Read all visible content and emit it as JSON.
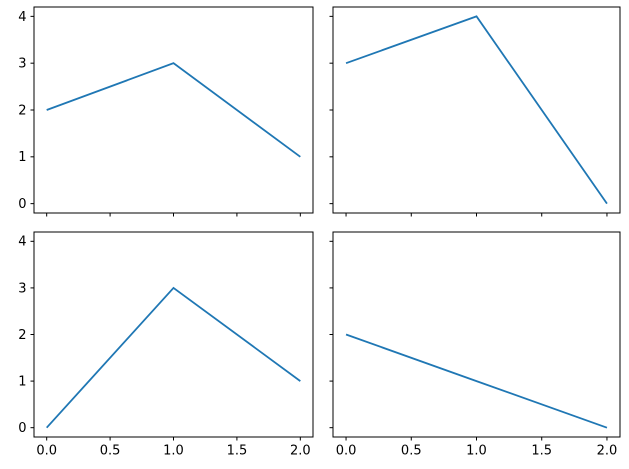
{
  "figure": {
    "background": "#ffffff",
    "spine_color": "#000000",
    "tick_color": "#000000",
    "line_color": "#1f77b4",
    "grid": false,
    "legend": null,
    "rows": 2,
    "cols": 2,
    "shared_x": true,
    "shared_y": true
  },
  "chart_data": [
    {
      "type": "line",
      "position": "top-left",
      "title": "",
      "xlabel": "",
      "ylabel": "",
      "x": [
        0,
        1,
        2
      ],
      "values": [
        2,
        3,
        1
      ],
      "xlim": [
        -0.1,
        2.1
      ],
      "ylim": [
        -0.2,
        4.2
      ],
      "x_ticks": [
        0,
        0.5,
        1,
        1.5,
        2
      ],
      "y_ticks": [
        0,
        1,
        2,
        3,
        4
      ],
      "x_tick_labels": [
        "0.0",
        "0.5",
        "1.0",
        "1.5",
        "2.0"
      ],
      "y_tick_labels": [
        "0",
        "1",
        "2",
        "3",
        "4"
      ],
      "show_x_tick_labels": false,
      "show_y_tick_labels": true,
      "color": "#1f77b4"
    },
    {
      "type": "line",
      "position": "top-right",
      "title": "",
      "xlabel": "",
      "ylabel": "",
      "x": [
        0,
        1,
        2
      ],
      "values": [
        3,
        4,
        0
      ],
      "xlim": [
        -0.1,
        2.1
      ],
      "ylim": [
        -0.2,
        4.2
      ],
      "x_ticks": [
        0,
        0.5,
        1,
        1.5,
        2
      ],
      "y_ticks": [
        0,
        1,
        2,
        3,
        4
      ],
      "x_tick_labels": [
        "0.0",
        "0.5",
        "1.0",
        "1.5",
        "2.0"
      ],
      "y_tick_labels": [
        "0",
        "1",
        "2",
        "3",
        "4"
      ],
      "show_x_tick_labels": false,
      "show_y_tick_labels": false,
      "color": "#1f77b4"
    },
    {
      "type": "line",
      "position": "bottom-left",
      "title": "",
      "xlabel": "",
      "ylabel": "",
      "x": [
        0,
        1,
        2
      ],
      "values": [
        0,
        3,
        1
      ],
      "xlim": [
        -0.1,
        2.1
      ],
      "ylim": [
        -0.2,
        4.2
      ],
      "x_ticks": [
        0,
        0.5,
        1,
        1.5,
        2
      ],
      "y_ticks": [
        0,
        1,
        2,
        3,
        4
      ],
      "x_tick_labels": [
        "0.0",
        "0.5",
        "1.0",
        "1.5",
        "2.0"
      ],
      "y_tick_labels": [
        "0",
        "1",
        "2",
        "3",
        "4"
      ],
      "show_x_tick_labels": true,
      "show_y_tick_labels": true,
      "color": "#1f77b4"
    },
    {
      "type": "line",
      "position": "bottom-right",
      "title": "",
      "xlabel": "",
      "ylabel": "",
      "x": [
        0,
        1,
        2
      ],
      "values": [
        2,
        1,
        0
      ],
      "xlim": [
        -0.1,
        2.1
      ],
      "ylim": [
        -0.2,
        4.2
      ],
      "x_ticks": [
        0,
        0.5,
        1,
        1.5,
        2
      ],
      "y_ticks": [
        0,
        1,
        2,
        3,
        4
      ],
      "x_tick_labels": [
        "0.0",
        "0.5",
        "1.0",
        "1.5",
        "2.0"
      ],
      "y_tick_labels": [
        "0",
        "1",
        "2",
        "3",
        "4"
      ],
      "show_x_tick_labels": true,
      "show_y_tick_labels": false,
      "color": "#1f77b4"
    }
  ]
}
